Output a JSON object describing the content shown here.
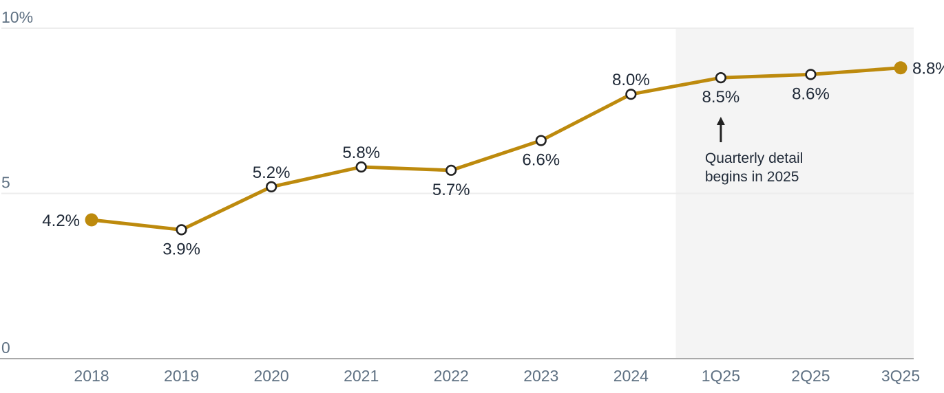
{
  "chart_data": {
    "type": "line",
    "categories": [
      "2018",
      "2019",
      "2020",
      "2021",
      "2022",
      "2023",
      "2024",
      "1Q25",
      "2Q25",
      "3Q25"
    ],
    "values": [
      4.2,
      3.9,
      5.2,
      5.8,
      5.7,
      6.6,
      8.0,
      8.5,
      8.6,
      8.8
    ],
    "point_labels": [
      "4.2%",
      "3.9%",
      "5.2%",
      "5.8%",
      "5.7%",
      "6.6%",
      "8.0%",
      "8.5%",
      "8.6%",
      "8.8%"
    ],
    "label_positions": [
      "left",
      "below",
      "above",
      "above",
      "below",
      "below",
      "above",
      "below",
      "below",
      "right"
    ],
    "marker_styles": [
      "filled",
      "open",
      "open",
      "open",
      "open",
      "open",
      "open",
      "open",
      "open",
      "filled"
    ],
    "title": "",
    "xlabel": "",
    "ylabel": "",
    "ylim": [
      0,
      10
    ],
    "y_ticks": [
      {
        "value": 10,
        "label": "10%"
      },
      {
        "value": 5,
        "label": "5"
      },
      {
        "value": 0,
        "label": "0"
      }
    ],
    "grid": true,
    "legend": "none",
    "highlight_region": {
      "start_category": "1Q25",
      "end_category": "3Q25",
      "covers": "quarterly 2025 data"
    },
    "annotation": {
      "line1": "Quarterly detail",
      "line2": "begins in 2025",
      "arrow": "up",
      "target_category": "1Q25"
    },
    "colors": {
      "line": "#BD8A0D",
      "endpoint_dot": "#BD8A0D",
      "open_marker_ring": "#222222",
      "open_marker_fill": "#FFFFFF",
      "highlight_region": "#F4F4F4",
      "data_label": "#1F2937",
      "axis_label": "#5F7183",
      "gridline": "#EDEDED",
      "axis_line": "#A9A9A9",
      "annotation_text": "#1F2937",
      "annotation_arrow": "#222222"
    }
  }
}
